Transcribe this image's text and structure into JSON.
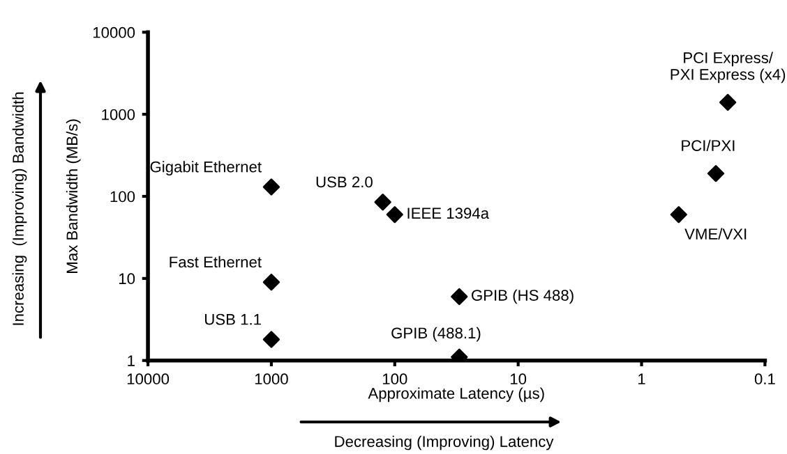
{
  "chart_data": {
    "type": "scatter",
    "xlabel": "Approximate Latency (µs)",
    "ylabel": "Max Bandwidth (MB/s)",
    "series": [
      {
        "color": "#000000",
        "x": [
          1000,
          1000,
          1000,
          125,
          100,
          30,
          30,
          0.2,
          0.25,
          0.5
        ],
        "values": [
          130,
          9,
          1.8,
          85,
          60,
          6,
          1.1,
          1400,
          190,
          60
        ]
      }
    ],
    "annotations": [
      {
        "text": "Gigabit Ethernet",
        "x": 1000,
        "y": 130
      },
      {
        "text": "Fast Ethernet",
        "x": 1000,
        "y": 9
      },
      {
        "text": "USB 1.1",
        "x": 1000,
        "y": 1.8
      },
      {
        "text": "USB 2.0",
        "x": 125,
        "y": 85
      },
      {
        "text": "IEEE 1394a",
        "x": 100,
        "y": 60
      },
      {
        "text": "GPIB (HS 488)",
        "x": 30,
        "y": 6
      },
      {
        "text": "GPIB (488.1)",
        "x": 30,
        "y": 1.1
      },
      {
        "text": "PCI Express/\nPXI Express (x4)",
        "x": 0.2,
        "y": 1400
      },
      {
        "text": "PCI/PXI",
        "x": 0.25,
        "y": 190
      },
      {
        "text": "VME/VXI",
        "x": 0.5,
        "y": 60
      },
      "Increasing  (Improving) Bandwidth",
      "Decreasing (Improving) Latency"
    ],
    "log": "xy",
    "xlim": [
      10000,
      0.1
    ],
    "xticks": [
      10000,
      1000,
      100,
      10,
      1,
      0.1
    ],
    "ylim": [
      1,
      10000
    ],
    "yticks": [
      1,
      10,
      100,
      1000,
      10000
    ],
    "grid": false,
    "legend": false,
    "marker": "diamond"
  }
}
